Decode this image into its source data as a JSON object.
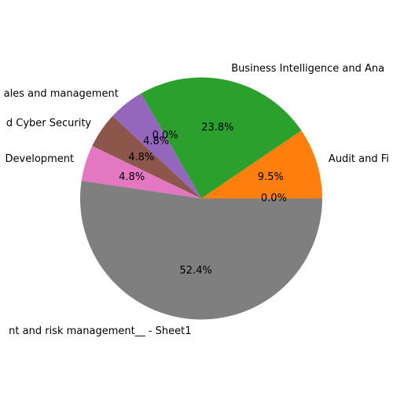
{
  "chart_data": {
    "type": "pie",
    "start_angle_deg": 0,
    "direction": "counterclockwise",
    "slices": [
      {
        "label": "",
        "value": 0.0,
        "percent_label": "0.0%",
        "color": "#1f77b4"
      },
      {
        "label": "Audit and Fi",
        "value": 9.5,
        "percent_label": "9.5%",
        "color": "#ff7f0e"
      },
      {
        "label": "Business Intelligence and Ana",
        "value": 23.8,
        "percent_label": "23.8%",
        "color": "#2ca02c"
      },
      {
        "label": "",
        "value": 0.0,
        "percent_label": "0.0%",
        "color": "#d62728"
      },
      {
        "label": "ales and management",
        "value": 4.8,
        "percent_label": "4.8%",
        "color": "#9467bd"
      },
      {
        "label": "d Cyber Security",
        "value": 4.8,
        "percent_label": "4.8%",
        "color": "#8c564b"
      },
      {
        "label": " Development",
        "value": 4.8,
        "percent_label": "4.8%",
        "color": "#e377c2"
      },
      {
        "label": "nt and risk management__ - Sheet1",
        "value": 52.4,
        "percent_label": "52.4%",
        "color": "#7f7f7f"
      }
    ]
  }
}
